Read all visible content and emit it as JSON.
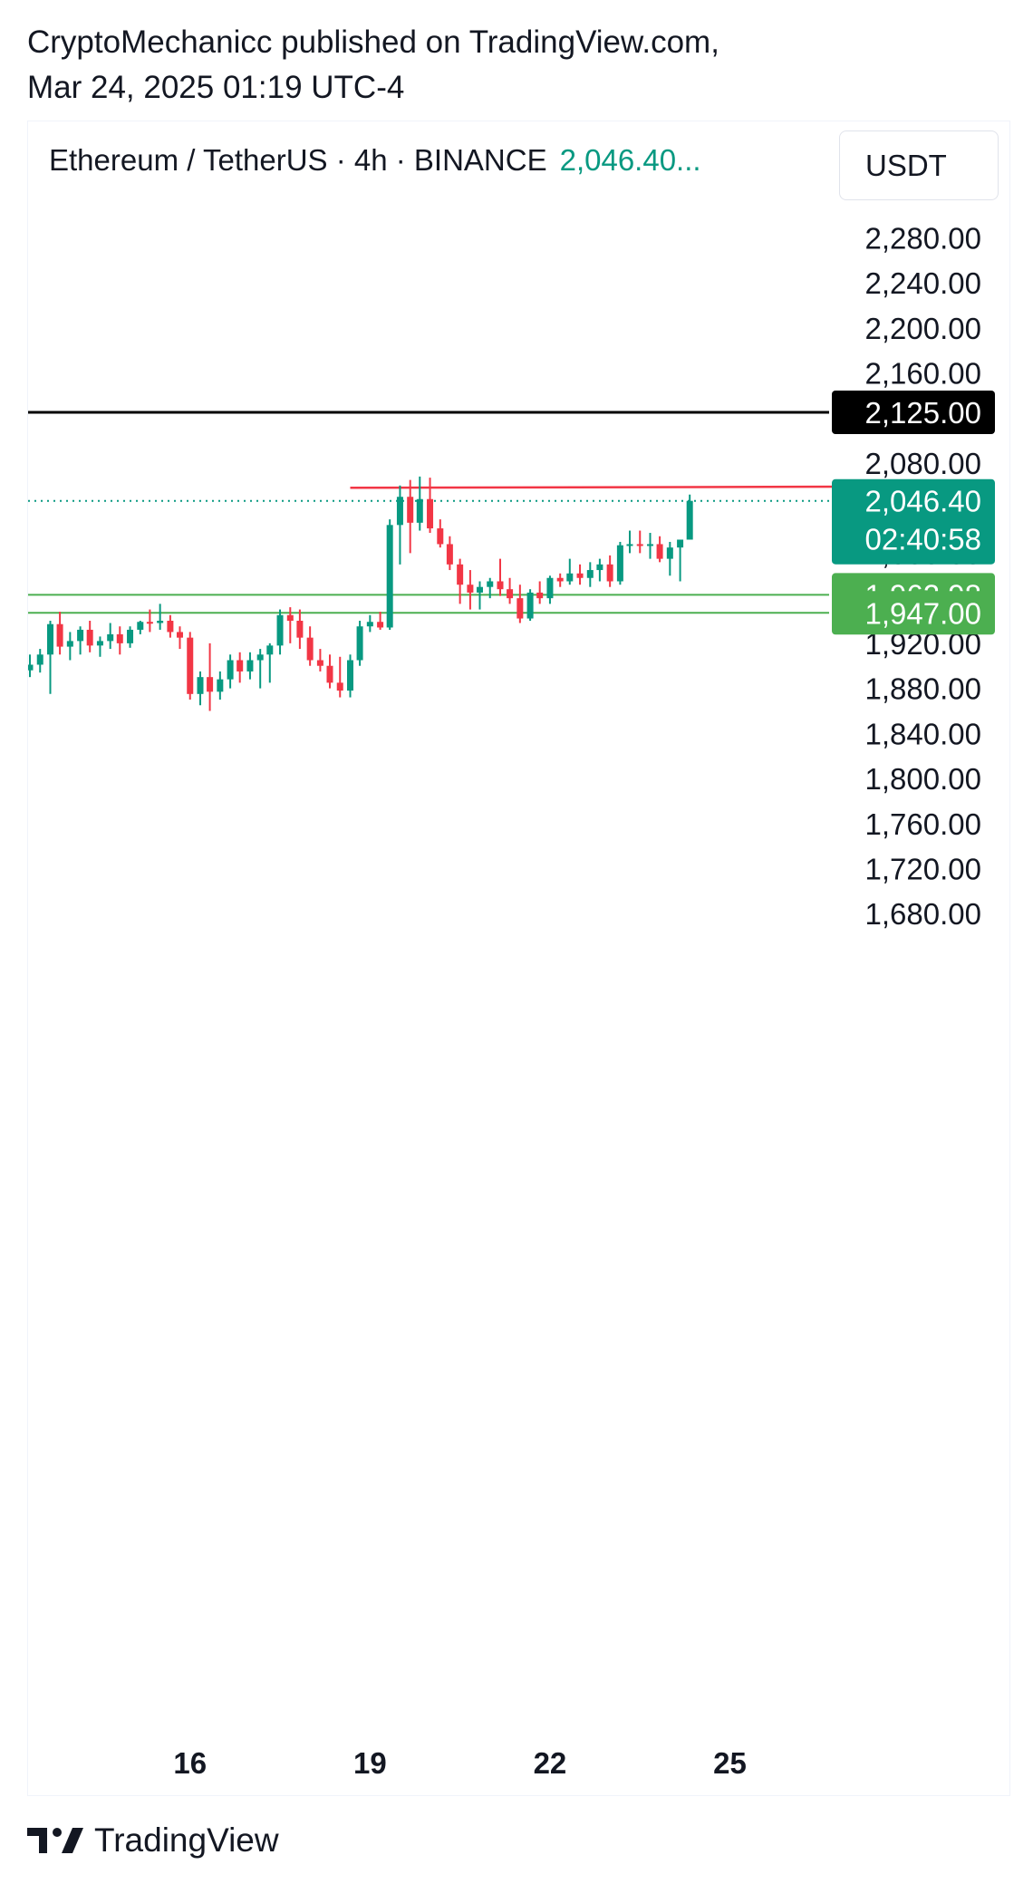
{
  "publisher": {
    "line1": "CryptoMechanicc published on TradingView.com,",
    "line2": "Mar 24, 2025 01:19 UTC-4"
  },
  "header": {
    "symbol": "Ethereum / TetherUS · 4h · BINANCE",
    "last_price": "2,046.40..."
  },
  "currency": "USDT",
  "footer": {
    "brand": "TradingView"
  },
  "colors": {
    "up": "#089981",
    "down": "#f23645",
    "support": "#4caf50",
    "resistance": "#f23645",
    "level": "#000000"
  },
  "chart_data": {
    "type": "candlestick",
    "ylim": [
      1650,
      2310
    ],
    "xlim": [
      13.3,
      27.7
    ],
    "price_axis": [
      "2,280.00",
      "2,240.00",
      "2,200.00",
      "2,160.00",
      "2,080.00",
      "2,000.00",
      "1,920.00",
      "1,880.00",
      "1,840.00",
      "1,800.00",
      "1,760.00",
      "1,720.00",
      "1,680.00"
    ],
    "price_ticks": [
      2280,
      2240,
      2200,
      2160,
      2080,
      2000,
      1920,
      1880,
      1840,
      1800,
      1760,
      1720,
      1680
    ],
    "time_axis": [
      "16",
      "19",
      "22",
      "25"
    ],
    "time_ticks": [
      16,
      19,
      22,
      25
    ],
    "lines": [
      {
        "name": "black-level",
        "price": 2125.0,
        "label": "2,125.00",
        "color": "#000000"
      },
      {
        "name": "support-upper",
        "price": 1962.98,
        "label": "1,962.98",
        "color": "#4caf50"
      },
      {
        "name": "support-lower",
        "price": 1947.0,
        "label": "1,947.00",
        "color": "#4caf50"
      }
    ],
    "resistance_segment": {
      "x_start": 18.67,
      "x_end": 27.1,
      "price_start": 2058,
      "price_end": 2059
    },
    "last_price": {
      "price": 2046.4,
      "label": "2,046.40",
      "countdown": "02:40:58"
    },
    "candles": [
      {
        "x": 13.33,
        "o": 1896,
        "h": 1910,
        "l": 1890,
        "c": 1901
      },
      {
        "x": 13.5,
        "o": 1901,
        "h": 1915,
        "l": 1894,
        "c": 1910
      },
      {
        "x": 13.67,
        "o": 1910,
        "h": 1940,
        "l": 1875,
        "c": 1937
      },
      {
        "x": 13.83,
        "o": 1937,
        "h": 1948,
        "l": 1910,
        "c": 1917
      },
      {
        "x": 14.0,
        "o": 1917,
        "h": 1930,
        "l": 1905,
        "c": 1922
      },
      {
        "x": 14.17,
        "o": 1922,
        "h": 1935,
        "l": 1910,
        "c": 1932
      },
      {
        "x": 14.33,
        "o": 1932,
        "h": 1940,
        "l": 1912,
        "c": 1918
      },
      {
        "x": 14.5,
        "o": 1918,
        "h": 1926,
        "l": 1908,
        "c": 1922
      },
      {
        "x": 14.67,
        "o": 1922,
        "h": 1938,
        "l": 1915,
        "c": 1928
      },
      {
        "x": 14.83,
        "o": 1928,
        "h": 1935,
        "l": 1910,
        "c": 1920
      },
      {
        "x": 15.0,
        "o": 1920,
        "h": 1935,
        "l": 1916,
        "c": 1932
      },
      {
        "x": 15.17,
        "o": 1932,
        "h": 1940,
        "l": 1928,
        "c": 1939
      },
      {
        "x": 15.33,
        "o": 1939,
        "h": 1950,
        "l": 1930,
        "c": 1938
      },
      {
        "x": 15.5,
        "o": 1938,
        "h": 1955,
        "l": 1932,
        "c": 1940
      },
      {
        "x": 15.67,
        "o": 1940,
        "h": 1945,
        "l": 1925,
        "c": 1930
      },
      {
        "x": 15.83,
        "o": 1930,
        "h": 1935,
        "l": 1915,
        "c": 1925
      },
      {
        "x": 16.0,
        "o": 1925,
        "h": 1930,
        "l": 1870,
        "c": 1875
      },
      {
        "x": 16.17,
        "o": 1875,
        "h": 1895,
        "l": 1865,
        "c": 1890
      },
      {
        "x": 16.33,
        "o": 1890,
        "h": 1920,
        "l": 1860,
        "c": 1877
      },
      {
        "x": 16.5,
        "o": 1877,
        "h": 1895,
        "l": 1870,
        "c": 1888
      },
      {
        "x": 16.67,
        "o": 1888,
        "h": 1910,
        "l": 1880,
        "c": 1905
      },
      {
        "x": 16.83,
        "o": 1905,
        "h": 1912,
        "l": 1885,
        "c": 1895
      },
      {
        "x": 17.0,
        "o": 1895,
        "h": 1912,
        "l": 1888,
        "c": 1905
      },
      {
        "x": 17.17,
        "o": 1905,
        "h": 1915,
        "l": 1880,
        "c": 1910
      },
      {
        "x": 17.33,
        "o": 1910,
        "h": 1920,
        "l": 1885,
        "c": 1918
      },
      {
        "x": 17.5,
        "o": 1918,
        "h": 1950,
        "l": 1910,
        "c": 1945
      },
      {
        "x": 17.67,
        "o": 1945,
        "h": 1952,
        "l": 1920,
        "c": 1940
      },
      {
        "x": 17.83,
        "o": 1940,
        "h": 1950,
        "l": 1915,
        "c": 1925
      },
      {
        "x": 18.0,
        "o": 1925,
        "h": 1935,
        "l": 1900,
        "c": 1905
      },
      {
        "x": 18.17,
        "o": 1905,
        "h": 1915,
        "l": 1895,
        "c": 1900
      },
      {
        "x": 18.33,
        "o": 1900,
        "h": 1910,
        "l": 1880,
        "c": 1885
      },
      {
        "x": 18.5,
        "o": 1885,
        "h": 1908,
        "l": 1872,
        "c": 1878
      },
      {
        "x": 18.67,
        "o": 1878,
        "h": 1910,
        "l": 1872,
        "c": 1905
      },
      {
        "x": 18.83,
        "o": 1905,
        "h": 1940,
        "l": 1900,
        "c": 1935
      },
      {
        "x": 19.0,
        "o": 1935,
        "h": 1945,
        "l": 1930,
        "c": 1939
      },
      {
        "x": 19.17,
        "o": 1939,
        "h": 1948,
        "l": 1932,
        "c": 1934
      },
      {
        "x": 19.33,
        "o": 1934,
        "h": 2030,
        "l": 1932,
        "c": 2025
      },
      {
        "x": 19.5,
        "o": 2025,
        "h": 2060,
        "l": 1990,
        "c": 2050
      },
      {
        "x": 19.67,
        "o": 2050,
        "h": 2065,
        "l": 2000,
        "c": 2027
      },
      {
        "x": 19.83,
        "o": 2027,
        "h": 2068,
        "l": 2020,
        "c": 2048
      },
      {
        "x": 20.0,
        "o": 2048,
        "h": 2067,
        "l": 2018,
        "c": 2022
      },
      {
        "x": 20.17,
        "o": 2022,
        "h": 2030,
        "l": 2005,
        "c": 2008
      },
      {
        "x": 20.33,
        "o": 2008,
        "h": 2015,
        "l": 1985,
        "c": 1990
      },
      {
        "x": 20.5,
        "o": 1990,
        "h": 1995,
        "l": 1955,
        "c": 1972
      },
      {
        "x": 20.67,
        "o": 1972,
        "h": 1985,
        "l": 1950,
        "c": 1965
      },
      {
        "x": 20.83,
        "o": 1965,
        "h": 1975,
        "l": 1950,
        "c": 1970
      },
      {
        "x": 21.0,
        "o": 1970,
        "h": 1978,
        "l": 1960,
        "c": 1975
      },
      {
        "x": 21.17,
        "o": 1975,
        "h": 1995,
        "l": 1962,
        "c": 1968
      },
      {
        "x": 21.33,
        "o": 1968,
        "h": 1978,
        "l": 1955,
        "c": 1960
      },
      {
        "x": 21.5,
        "o": 1960,
        "h": 1972,
        "l": 1938,
        "c": 1942
      },
      {
        "x": 21.67,
        "o": 1942,
        "h": 1968,
        "l": 1940,
        "c": 1965
      },
      {
        "x": 21.83,
        "o": 1965,
        "h": 1975,
        "l": 1955,
        "c": 1960
      },
      {
        "x": 22.0,
        "o": 1960,
        "h": 1980,
        "l": 1955,
        "c": 1978
      },
      {
        "x": 22.17,
        "o": 1978,
        "h": 1982,
        "l": 1970,
        "c": 1975
      },
      {
        "x": 22.33,
        "o": 1975,
        "h": 1995,
        "l": 1972,
        "c": 1982
      },
      {
        "x": 22.5,
        "o": 1982,
        "h": 1990,
        "l": 1972,
        "c": 1978
      },
      {
        "x": 22.67,
        "o": 1978,
        "h": 1992,
        "l": 1970,
        "c": 1985
      },
      {
        "x": 22.83,
        "o": 1985,
        "h": 1995,
        "l": 1975,
        "c": 1990
      },
      {
        "x": 23.0,
        "o": 1990,
        "h": 1998,
        "l": 1970,
        "c": 1975
      },
      {
        "x": 23.17,
        "o": 1975,
        "h": 2010,
        "l": 1972,
        "c": 2007
      },
      {
        "x": 23.33,
        "o": 2007,
        "h": 2020,
        "l": 2000,
        "c": 2008
      },
      {
        "x": 23.5,
        "o": 2008,
        "h": 2020,
        "l": 2000,
        "c": 2007
      },
      {
        "x": 23.67,
        "o": 2007,
        "h": 2018,
        "l": 1995,
        "c": 2008
      },
      {
        "x": 23.83,
        "o": 2008,
        "h": 2015,
        "l": 1992,
        "c": 1995
      },
      {
        "x": 24.0,
        "o": 1995,
        "h": 2010,
        "l": 1980,
        "c": 2005
      },
      {
        "x": 24.17,
        "o": 2005,
        "h": 2012,
        "l": 1975,
        "c": 2012
      },
      {
        "x": 24.33,
        "o": 2012,
        "h": 2052,
        "l": 2012,
        "c": 2046.4
      }
    ]
  }
}
